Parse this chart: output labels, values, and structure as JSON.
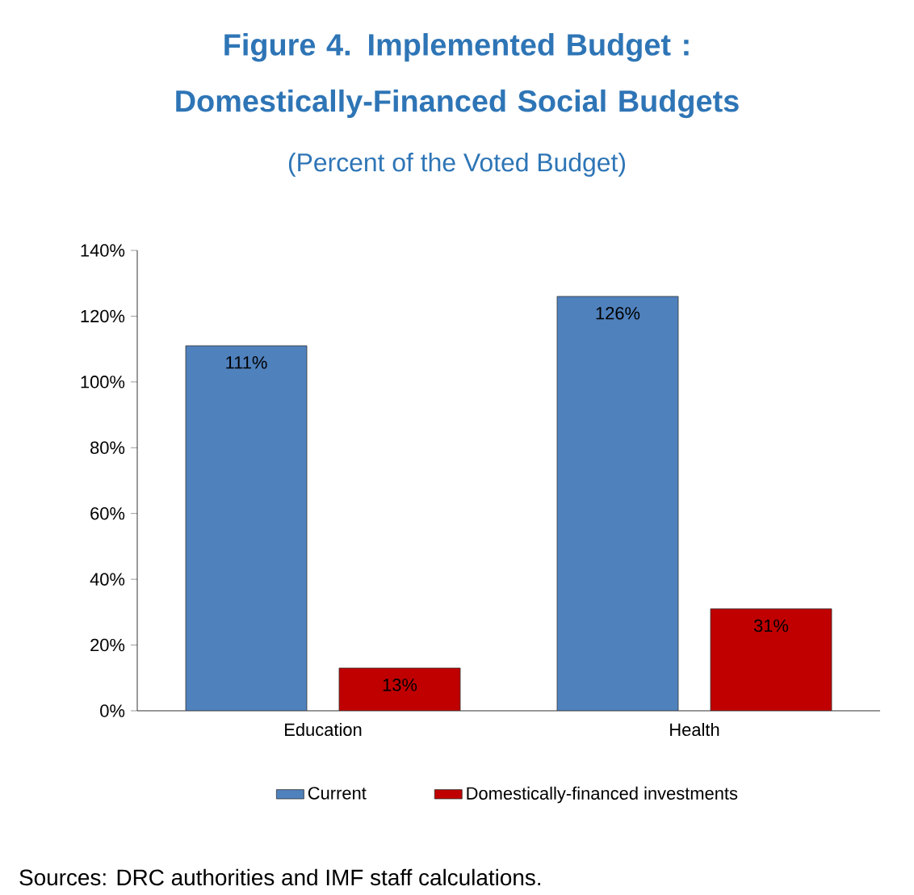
{
  "chart_data": {
    "type": "bar",
    "title": "Figure 4. Implemented Budget : Domestically-Financed Social Budgets",
    "subtitle": "(Percent of the Voted Budget)",
    "categories": [
      "Education",
      "Health"
    ],
    "series": [
      {
        "name": "Current",
        "color": "#4f81bd",
        "values": [
          111,
          126
        ],
        "value_labels": [
          "111%",
          "126%"
        ]
      },
      {
        "name": "Domestically-financed investments",
        "color": "#c00000",
        "values": [
          13,
          31
        ],
        "value_labels": [
          "13%",
          "31%"
        ]
      }
    ],
    "ylim": [
      0,
      140
    ],
    "yticks": [
      {
        "value": 0,
        "label": "0%"
      },
      {
        "value": 20,
        "label": "20%"
      },
      {
        "value": 40,
        "label": "40%"
      },
      {
        "value": 60,
        "label": "60%"
      },
      {
        "value": 80,
        "label": "80%"
      },
      {
        "value": 100,
        "label": "100%"
      },
      {
        "value": 120,
        "label": "120%"
      },
      {
        "value": 140,
        "label": "140%"
      }
    ],
    "grid": false,
    "legend": "bottom",
    "annotations": [
      "Sources: DRC authorities and IMF staff calculations."
    ]
  }
}
